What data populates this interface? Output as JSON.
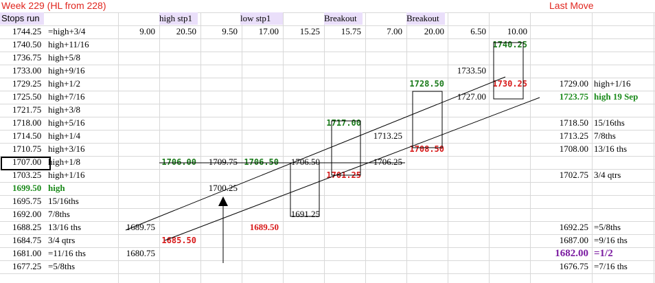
{
  "title": "Week 229 (HL from 228)",
  "last_move": "Last Move",
  "headers": {
    "stops_run": "Stops run",
    "high_stp1": "high stp1",
    "low_stp1": "low stp1",
    "breakout1": "Breakout",
    "breakout2": "Breakout"
  },
  "top_values": [
    "9.00",
    "20.50",
    "9.50",
    "17.00",
    "15.25",
    "15.75",
    "7.00",
    "20.00",
    "6.50",
    "10.00"
  ],
  "levels": [
    {
      "price": "1744.25",
      "label": "=high+3/4"
    },
    {
      "price": "1740.50",
      "label": "high+11/16"
    },
    {
      "price": "1736.75",
      "label": "high+5/8"
    },
    {
      "price": "1733.00",
      "label": "high+9/16"
    },
    {
      "price": "1729.25",
      "label": "high+1/2"
    },
    {
      "price": "1725.50",
      "label": "high+7/16"
    },
    {
      "price": "1721.75",
      "label": "high+3/8"
    },
    {
      "price": "1718.00",
      "label": "high+5/16"
    },
    {
      "price": "1714.50",
      "label": "high+1/4"
    },
    {
      "price": "1710.75",
      "label": "high+3/16"
    },
    {
      "price": "1707.00",
      "label": "high+1/8"
    },
    {
      "price": "1703.25",
      "label": "high+1/16"
    },
    {
      "price": "1699.50",
      "label": "high"
    },
    {
      "price": "1695.75",
      "label": "15/16ths"
    },
    {
      "price": "1692.00",
      "label": "7/8ths"
    },
    {
      "price": "1688.25",
      "label": "13/16 ths"
    },
    {
      "price": "1684.75",
      "label": "3/4 qtrs"
    },
    {
      "price": "1681.00",
      "label": "=11/16 ths"
    },
    {
      "price": "1677.25",
      "label": "=5/8ths"
    }
  ],
  "grid_values": {
    "c1_r15": "1689.75",
    "c1_r17": "1680.75",
    "c2_r10": "1706.00",
    "c2_r16": "1685.50",
    "c3_r10": "1709.75",
    "c3_r12": "1700.25",
    "c4_r10": "1706.50",
    "c4_r15": "1689.50",
    "c5_r10": "1706.50",
    "c5_r14": "1691.25",
    "c6_r7": "1717.00",
    "c6_r11": "1701.25",
    "c7_r8": "1713.25",
    "c7_r10": "1706.25",
    "c8_r4": "1728.50",
    "c8_r9": "1708.50",
    "c9_r3": "1733.50",
    "c9_r5": "1727.00",
    "c10_r1": "1740.25",
    "c10_r4": "1730.25"
  },
  "right_table": [
    {
      "row": 4,
      "price": "1729.00",
      "label": "high+1/16"
    },
    {
      "row": 5,
      "price": "1723.75",
      "label": "high 19 Sep"
    },
    {
      "row": 7,
      "price": "1718.50",
      "label": "15/16ths"
    },
    {
      "row": 8,
      "price": "1713.25",
      "label": "7/8ths"
    },
    {
      "row": 9,
      "price": "1708.00",
      "label": "13/16 ths"
    },
    {
      "row": 11,
      "price": "1702.75",
      "label": "3/4 qtrs"
    },
    {
      "row": 15,
      "price": "1692.25",
      "label": "=5/8ths"
    },
    {
      "row": 16,
      "price": "1687.00",
      "label": "=9/16 ths"
    },
    {
      "row": 17,
      "price": "1682.00",
      "label": "=1/2"
    },
    {
      "row": 18,
      "price": "1676.75",
      "label": "=7/16 ths"
    }
  ],
  "colors": {
    "title_red": "#e0261f",
    "header_bg": "#eadffa",
    "green": "#1a8a1a",
    "red": "#d81a1a",
    "purple": "#7a1aa0"
  }
}
